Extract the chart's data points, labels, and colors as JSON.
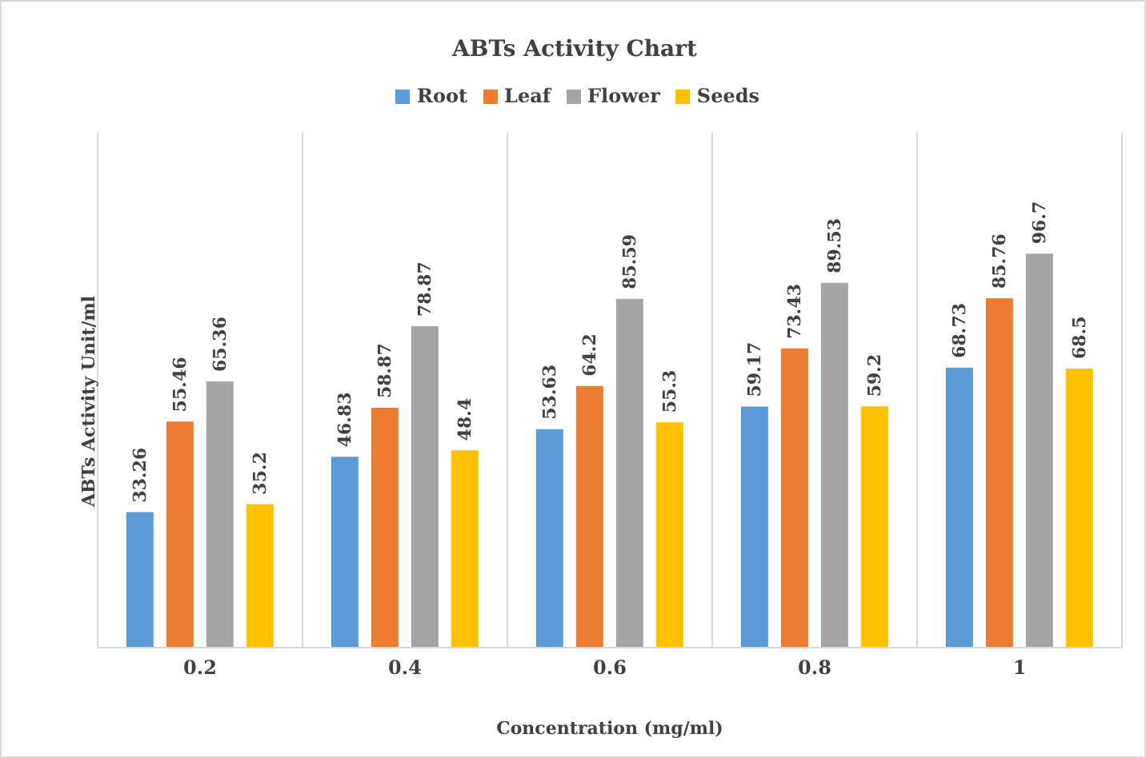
{
  "chart_data": {
    "type": "bar",
    "title": "ABTs Activity Chart",
    "xlabel": "Concentration  (mg/ml)",
    "ylabel": "ABTs Activity Unit/ml",
    "categories": [
      "0.2",
      "0.4",
      "0.6",
      "0.8",
      "1"
    ],
    "series": [
      {
        "name": "Root",
        "color": "#5b9bd5",
        "values": [
          33.26,
          46.83,
          53.63,
          59.17,
          68.73
        ]
      },
      {
        "name": "Leaf",
        "color": "#ed7d31",
        "values": [
          55.46,
          58.87,
          64.2,
          73.43,
          85.76
        ]
      },
      {
        "name": "Flower",
        "color": "#a5a5a5",
        "values": [
          65.36,
          78.87,
          85.59,
          89.53,
          96.7
        ]
      },
      {
        "name": "Seeds",
        "color": "#ffc000",
        "values": [
          35.2,
          48.4,
          55.3,
          59.2,
          68.5
        ]
      }
    ],
    "data_labels": true,
    "legend": "top",
    "grid": "x"
  }
}
